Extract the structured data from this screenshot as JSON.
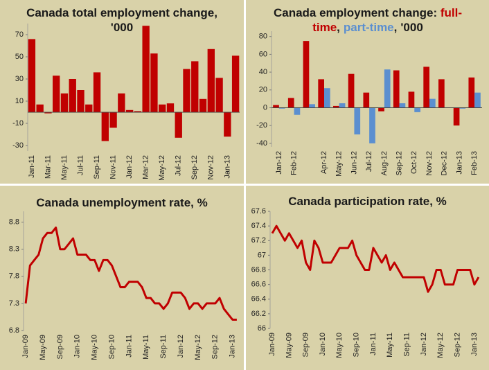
{
  "chart_data": [
    {
      "type": "bar",
      "title": "Canada total employment change, '000",
      "categories": [
        "Jan-11",
        null,
        "Mar-11",
        null,
        "May-11",
        null,
        "Jul-11",
        null,
        "Sep-11",
        null,
        "Nov-11",
        null,
        "Jan-12",
        null,
        "Mar-12",
        null,
        "May-12",
        null,
        "Jul-12",
        null,
        "Sep-12",
        null,
        "Nov-12",
        null,
        "Jan-13",
        null
      ],
      "series": [
        {
          "name": "Total",
          "color": "#c00000",
          "values": [
            66,
            7,
            -1,
            33,
            17,
            30,
            20,
            7,
            36,
            -26,
            -14,
            17,
            2,
            1,
            78,
            53,
            7,
            8,
            -23,
            39,
            46,
            12,
            57,
            31,
            -22,
            51
          ]
        }
      ],
      "ylim": [
        -35,
        80
      ],
      "yticks": [
        70,
        50,
        30,
        10,
        -10,
        -30
      ]
    },
    {
      "type": "bar",
      "title": "Canada employment change:",
      "title_separator": ",",
      "title_suffix": "'000",
      "categories": [
        "Jan-12",
        "Feb-12",
        null,
        "Apr-12",
        "May-12",
        "Jun-12",
        "Jul-12",
        "Aug-12",
        "Sep-12",
        "Oct-12",
        "Nov-12",
        "Dec-12",
        "Jan-13",
        "Feb-13"
      ],
      "series": [
        {
          "name": "full-time",
          "color": "#c00000",
          "values": [
            3,
            11,
            75,
            32,
            2,
            38,
            17,
            -4,
            42,
            18,
            46,
            32,
            -20,
            34
          ]
        },
        {
          "name": "part-time",
          "color": "#5b8fd0",
          "values": [
            -1,
            -8,
            4,
            22,
            5,
            -30,
            -40,
            43,
            5,
            -5,
            10,
            0,
            -1,
            17
          ]
        }
      ],
      "ylim": [
        -44,
        86
      ],
      "yticks": [
        80,
        60,
        40,
        20,
        0,
        -20,
        -40
      ]
    },
    {
      "type": "line",
      "title": "Canada unemployment rate, %",
      "categories": [
        "Jan-09",
        null,
        null,
        null,
        "May-09",
        null,
        null,
        null,
        "Sep-09",
        null,
        null,
        null,
        "Jan-10",
        null,
        null,
        null,
        "May-10",
        null,
        null,
        null,
        "Sep-10",
        null,
        null,
        null,
        "Jan-11",
        null,
        null,
        null,
        "May-11",
        null,
        null,
        null,
        "Sep-11",
        null,
        null,
        null,
        "Jan-12",
        null,
        null,
        null,
        "May-12",
        null,
        null,
        null,
        "Sep-12",
        null,
        null,
        null,
        "Jan-13",
        null
      ],
      "series": [
        {
          "name": "Unemployment rate",
          "color": "#c00000",
          "values": [
            7.3,
            8.0,
            8.1,
            8.2,
            8.5,
            8.6,
            8.6,
            8.7,
            8.3,
            8.3,
            8.4,
            8.5,
            8.2,
            8.2,
            8.2,
            8.1,
            8.1,
            7.9,
            8.1,
            8.1,
            8.0,
            7.8,
            7.6,
            7.6,
            7.7,
            7.7,
            7.7,
            7.6,
            7.4,
            7.4,
            7.3,
            7.3,
            7.2,
            7.3,
            7.5,
            7.5,
            7.5,
            7.4,
            7.2,
            7.3,
            7.3,
            7.2,
            7.3,
            7.3,
            7.3,
            7.4,
            7.2,
            7.1,
            7.0,
            7.0
          ]
        }
      ],
      "ylim": [
        6.8,
        9.0
      ],
      "yticks": [
        8.8,
        8.3,
        7.8,
        7.3,
        6.8
      ]
    },
    {
      "type": "line",
      "title": "Canada participation rate, %",
      "categories": [
        "Jan-09",
        null,
        null,
        null,
        "May-09",
        null,
        null,
        null,
        "Sep-09",
        null,
        null,
        null,
        "Jan-10",
        null,
        null,
        null,
        "May-10",
        null,
        null,
        null,
        "Sep-10",
        null,
        null,
        null,
        "Jan-11",
        null,
        null,
        null,
        "May-11",
        null,
        null,
        null,
        "Sep-11",
        null,
        null,
        null,
        "Jan-12",
        null,
        null,
        null,
        "May-12",
        null,
        null,
        null,
        "Sep-12",
        null,
        null,
        null,
        "Jan-13",
        null
      ],
      "series": [
        {
          "name": "Participation rate",
          "color": "#c00000",
          "values": [
            67.3,
            67.4,
            67.3,
            67.2,
            67.3,
            67.2,
            67.1,
            67.2,
            66.9,
            66.8,
            67.2,
            67.1,
            66.9,
            66.9,
            66.9,
            67.0,
            67.1,
            67.1,
            67.1,
            67.2,
            67.0,
            66.9,
            66.8,
            66.8,
            67.1,
            67.0,
            66.9,
            67.0,
            66.8,
            66.9,
            66.8,
            66.7,
            66.7,
            66.7,
            66.7,
            66.7,
            66.7,
            66.5,
            66.6,
            66.8,
            66.8,
            66.6,
            66.6,
            66.6,
            66.8,
            66.8,
            66.8,
            66.8,
            66.6,
            66.7
          ]
        }
      ],
      "ylim": [
        66,
        67.6
      ],
      "yticks": [
        67.6,
        67.4,
        67.2,
        67,
        66.8,
        66.6,
        66.4,
        66.2,
        66
      ]
    }
  ]
}
